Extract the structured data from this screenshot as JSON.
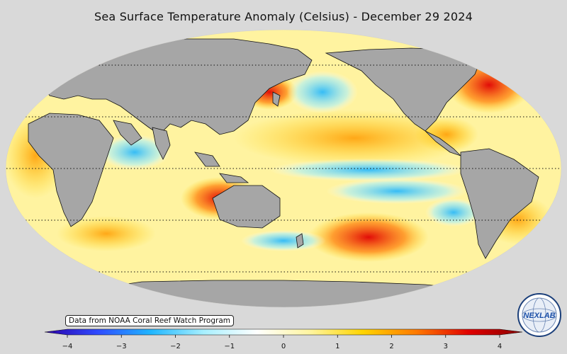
{
  "title": "Sea Surface Temperature Anomaly (Celsius) - December 29 2024",
  "credit": "Data from NOAA Coral Reef Watch Program",
  "logo": {
    "text": "NEXLAB",
    "icon": "nexlab-globe-logo"
  },
  "colorbar": {
    "min": -4,
    "max": 4,
    "ticks": [
      {
        "value": -4,
        "label": "−4"
      },
      {
        "value": -3,
        "label": "−3"
      },
      {
        "value": -2,
        "label": "−2"
      },
      {
        "value": -1,
        "label": "−1"
      },
      {
        "value": 0,
        "label": "0"
      },
      {
        "value": 1,
        "label": "1"
      },
      {
        "value": 2,
        "label": "2"
      },
      {
        "value": 3,
        "label": "3"
      },
      {
        "value": 4,
        "label": "4"
      }
    ],
    "stops": [
      "#2b00a8",
      "#2f4bff",
      "#1fb6ff",
      "#a8f0ff",
      "#ffffff",
      "#fff5a0",
      "#ffd400",
      "#ff7a00",
      "#e00000",
      "#8a0000"
    ]
  },
  "colors": {
    "land": "#a6a6a6",
    "ocean_base": "#fff6b0",
    "background": "#d9d9d9"
  }
}
